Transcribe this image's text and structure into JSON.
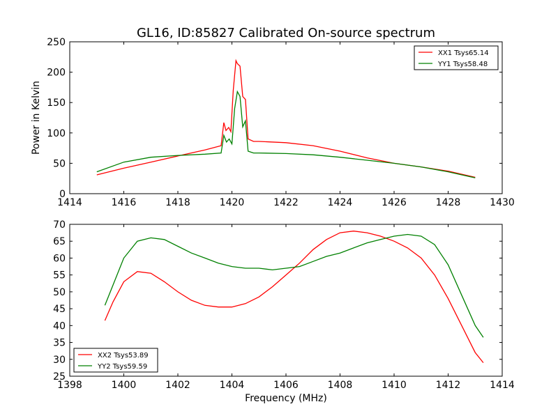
{
  "figure": {
    "title": "GL16, ID:85827 Calibrated On-source spectrum"
  },
  "chart_data": [
    {
      "type": "line",
      "title": "GL16, ID:85827 Calibrated On-source spectrum",
      "xlabel": "",
      "ylabel": "Power in Kelvin",
      "xlim": [
        1414,
        1430
      ],
      "ylim": [
        0,
        250
      ],
      "xticks": [
        1414,
        1416,
        1418,
        1420,
        1422,
        1424,
        1426,
        1428,
        1430
      ],
      "yticks": [
        0,
        50,
        100,
        150,
        200,
        250
      ],
      "grid": false,
      "legend_position": "top-right",
      "series": [
        {
          "name": "XX1 Tsys65.14",
          "color": "#ff0000",
          "x": [
            1415.0,
            1416.0,
            1417.0,
            1418.0,
            1419.0,
            1419.6,
            1419.7,
            1419.78,
            1419.88,
            1419.96,
            1420.05,
            1420.15,
            1420.2,
            1420.3,
            1420.4,
            1420.5,
            1420.6,
            1420.8,
            1421.0,
            1422.0,
            1423.0,
            1424.0,
            1425.0,
            1426.0,
            1427.0,
            1428.0,
            1429.0
          ],
          "y": [
            31,
            42,
            52,
            62,
            72,
            79,
            117,
            104,
            109,
            102,
            170,
            219,
            214,
            210,
            160,
            155,
            90,
            86,
            86,
            84,
            79,
            70,
            59,
            50,
            44,
            37,
            27
          ]
        },
        {
          "name": "YY1 Tsys58.48",
          "color": "#008000",
          "x": [
            1415.0,
            1416.0,
            1417.0,
            1418.0,
            1419.0,
            1419.6,
            1419.7,
            1419.8,
            1419.9,
            1420.0,
            1420.1,
            1420.2,
            1420.3,
            1420.4,
            1420.5,
            1420.6,
            1420.8,
            1421.0,
            1422.0,
            1423.0,
            1424.0,
            1425.0,
            1426.0,
            1427.0,
            1428.0,
            1429.0
          ],
          "y": [
            36,
            52,
            60,
            63,
            65,
            67,
            96,
            85,
            90,
            82,
            140,
            168,
            160,
            110,
            120,
            70,
            67,
            67,
            66,
            64,
            60,
            55,
            50,
            44,
            36,
            26
          ]
        }
      ]
    },
    {
      "type": "line",
      "title": "",
      "xlabel": "Frequency (MHz)",
      "ylabel": "",
      "xlim": [
        1398,
        1414
      ],
      "ylim": [
        25,
        70
      ],
      "xticks": [
        1398,
        1400,
        1402,
        1404,
        1406,
        1408,
        1410,
        1412,
        1414
      ],
      "yticks": [
        25,
        30,
        35,
        40,
        45,
        50,
        55,
        60,
        65,
        70
      ],
      "grid": false,
      "legend_position": "bottom-left",
      "series": [
        {
          "name": "XX2 Tsys53.89",
          "color": "#ff0000",
          "x": [
            1399.3,
            1399.6,
            1400.0,
            1400.5,
            1401.0,
            1401.5,
            1402.0,
            1402.5,
            1403.0,
            1403.5,
            1404.0,
            1404.5,
            1405.0,
            1405.5,
            1406.0,
            1406.5,
            1407.0,
            1407.5,
            1408.0,
            1408.5,
            1409.0,
            1409.5,
            1410.0,
            1410.5,
            1411.0,
            1411.5,
            1412.0,
            1412.5,
            1413.0,
            1413.3
          ],
          "y": [
            41.5,
            47,
            53,
            56,
            55.5,
            53,
            50,
            47.5,
            46,
            45.5,
            45.5,
            46.5,
            48.5,
            51.5,
            55,
            58.5,
            62.5,
            65.5,
            67.5,
            68,
            67.5,
            66.5,
            65,
            63,
            60,
            55,
            48,
            40,
            32,
            29
          ]
        },
        {
          "name": "YY2 Tsys59.59",
          "color": "#008000",
          "x": [
            1399.3,
            1399.6,
            1400.0,
            1400.5,
            1401.0,
            1401.5,
            1402.0,
            1402.5,
            1403.0,
            1403.5,
            1404.0,
            1404.5,
            1405.0,
            1405.5,
            1406.0,
            1406.5,
            1407.0,
            1407.5,
            1408.0,
            1408.5,
            1409.0,
            1409.5,
            1410.0,
            1410.5,
            1411.0,
            1411.5,
            1412.0,
            1412.5,
            1413.0,
            1413.3
          ],
          "y": [
            46,
            52,
            60,
            65,
            66,
            65.5,
            63.5,
            61.5,
            60,
            58.5,
            57.5,
            57,
            57,
            56.5,
            57,
            57.5,
            59,
            60.5,
            61.5,
            63,
            64.5,
            65.5,
            66.5,
            67,
            66.5,
            64,
            58,
            49,
            40,
            36.5
          ]
        }
      ]
    }
  ]
}
